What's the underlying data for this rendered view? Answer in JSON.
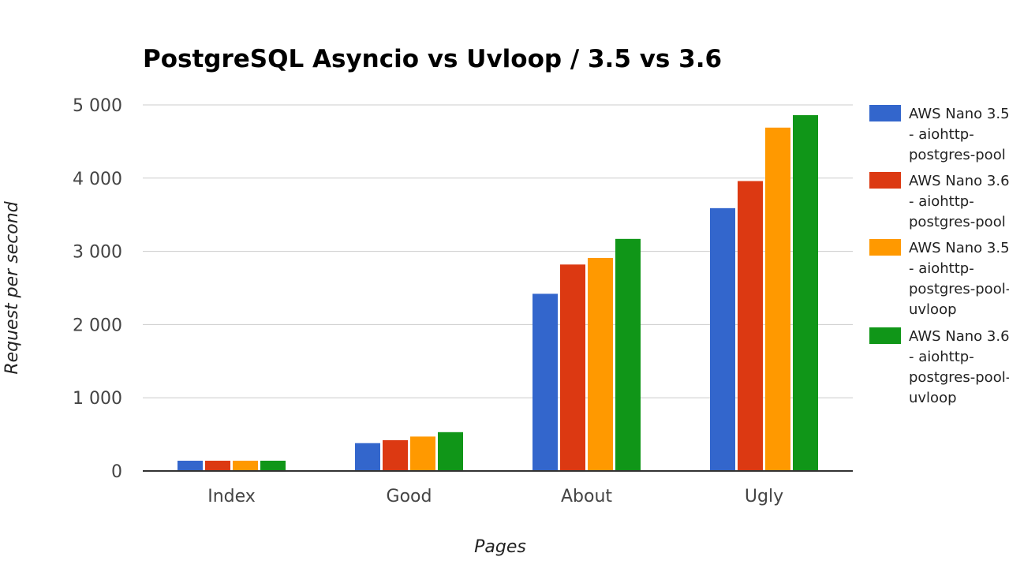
{
  "chart_data": {
    "type": "bar",
    "title": "PostgreSQL Asyncio vs Uvloop / 3.5 vs 3.6",
    "xlabel": "Pages",
    "ylabel": "Request per second",
    "categories": [
      "Index",
      "Good",
      "About",
      "Ugly"
    ],
    "ylim": [
      0,
      5000
    ],
    "yticks": [
      0,
      1000,
      2000,
      3000,
      4000,
      5000
    ],
    "ytick_labels": [
      "0",
      "1 000",
      "2 000",
      "3 000",
      "4 000",
      "5 000"
    ],
    "grid": true,
    "legend_position": "right",
    "series": [
      {
        "name": "AWS Nano 3.5 - aiohttp-postgres-pool",
        "legend_lines": [
          "AWS Nano 3.5",
          "- aiohttp-",
          "postgres-pool"
        ],
        "color": "#3366cc",
        "values": [
          140,
          380,
          2420,
          3590
        ]
      },
      {
        "name": "AWS Nano 3.6 - aiohttp-postgres-pool",
        "legend_lines": [
          "AWS Nano 3.6",
          "- aiohttp-",
          "postgres-pool"
        ],
        "color": "#dc3912",
        "values": [
          140,
          420,
          2820,
          3960
        ]
      },
      {
        "name": "AWS Nano 3.5 - aiohttp-postgres-pool-uvloop",
        "legend_lines": [
          "AWS Nano 3.5",
          "- aiohttp-",
          "postgres-pool-",
          "uvloop"
        ],
        "color": "#ff9900",
        "values": [
          140,
          470,
          2910,
          4690
        ]
      },
      {
        "name": "AWS Nano 3.6 - aiohttp-postgres-pool-uvloop",
        "legend_lines": [
          "AWS Nano 3.6",
          "- aiohttp-",
          "postgres-pool-",
          "uvloop"
        ],
        "color": "#109618",
        "values": [
          140,
          530,
          3170,
          4860
        ]
      }
    ]
  }
}
